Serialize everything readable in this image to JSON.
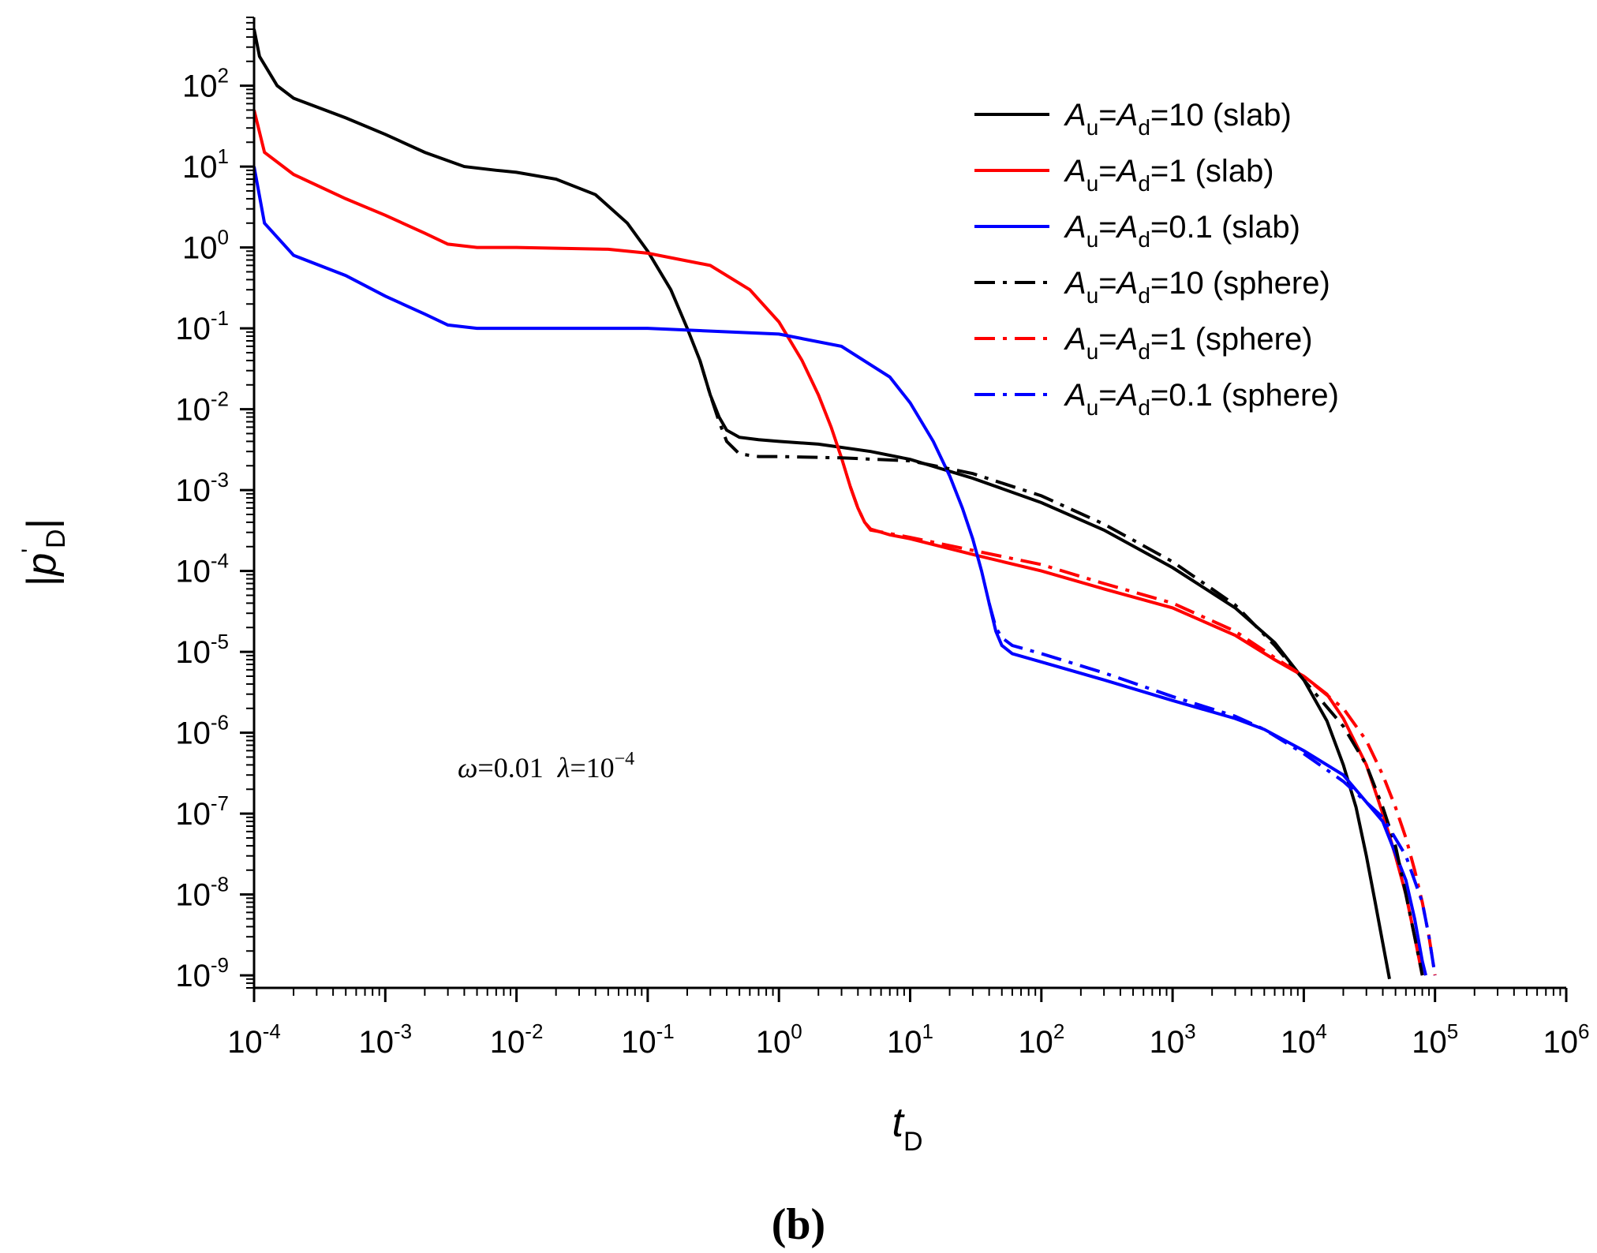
{
  "chart_data": {
    "type": "line",
    "xscale": "log",
    "yscale": "log",
    "xlim": [
      0.0001,
      1000000
    ],
    "ylim": [
      7e-10,
      700
    ],
    "xlabel": {
      "main": "t",
      "sub": "D"
    },
    "ylabel": {
      "open": "|",
      "main": "p",
      "prime": "'",
      "sub": "D",
      "close": "|"
    },
    "x_ticks": [
      {
        "value": 0.0001,
        "base": "10",
        "exp": "-4"
      },
      {
        "value": 0.001,
        "base": "10",
        "exp": "-3"
      },
      {
        "value": 0.01,
        "base": "10",
        "exp": "-2"
      },
      {
        "value": 0.1,
        "base": "10",
        "exp": "-1"
      },
      {
        "value": 1,
        "base": "10",
        "exp": "0"
      },
      {
        "value": 10,
        "base": "10",
        "exp": "1"
      },
      {
        "value": 100,
        "base": "10",
        "exp": "2"
      },
      {
        "value": 1000,
        "base": "10",
        "exp": "3"
      },
      {
        "value": 10000,
        "base": "10",
        "exp": "4"
      },
      {
        "value": 100000,
        "base": "10",
        "exp": "5"
      },
      {
        "value": 1000000,
        "base": "10",
        "exp": "6"
      }
    ],
    "y_ticks": [
      {
        "value": 1e-09,
        "base": "10",
        "exp": "-9"
      },
      {
        "value": 1e-08,
        "base": "10",
        "exp": "-8"
      },
      {
        "value": 1e-07,
        "base": "10",
        "exp": "-7"
      },
      {
        "value": 1e-06,
        "base": "10",
        "exp": "-6"
      },
      {
        "value": 1e-05,
        "base": "10",
        "exp": "-5"
      },
      {
        "value": 0.0001,
        "base": "10",
        "exp": "-4"
      },
      {
        "value": 0.001,
        "base": "10",
        "exp": "-3"
      },
      {
        "value": 0.01,
        "base": "10",
        "exp": "-2"
      },
      {
        "value": 0.1,
        "base": "10",
        "exp": "-1"
      },
      {
        "value": 1,
        "base": "10",
        "exp": "0"
      },
      {
        "value": 10,
        "base": "10",
        "exp": "1"
      },
      {
        "value": 100,
        "base": "10",
        "exp": "2"
      }
    ],
    "annotation": {
      "omega_symbol": "ω",
      "omega_value": "=0.01",
      "lambda_symbol": "λ",
      "lambda_value": "=10",
      "lambda_exp": "−4"
    },
    "caption": "(b)",
    "legend_position": "top-right",
    "series": [
      {
        "name": "Au=Ad=10 (slab)",
        "label": {
          "a1": "A",
          "s1": "u",
          "eq1": "=",
          "a2": "A",
          "s2": "d",
          "rest": "=10 (slab)"
        },
        "color": "#000000",
        "style": "solid",
        "points": [
          [
            0.0001,
            500
          ],
          [
            0.00011,
            230
          ],
          [
            0.00015,
            100
          ],
          [
            0.0002,
            70
          ],
          [
            0.0005,
            40
          ],
          [
            0.001,
            25
          ],
          [
            0.002,
            15
          ],
          [
            0.004,
            10
          ],
          [
            0.007,
            9
          ],
          [
            0.01,
            8.5
          ],
          [
            0.02,
            7
          ],
          [
            0.04,
            4.5
          ],
          [
            0.07,
            2
          ],
          [
            0.1,
            0.9
          ],
          [
            0.15,
            0.3
          ],
          [
            0.2,
            0.1
          ],
          [
            0.25,
            0.04
          ],
          [
            0.3,
            0.015
          ],
          [
            0.35,
            0.008
          ],
          [
            0.4,
            0.0055
          ],
          [
            0.5,
            0.0045
          ],
          [
            0.7,
            0.0042
          ],
          [
            1,
            0.004
          ],
          [
            2,
            0.0037
          ],
          [
            5,
            0.003
          ],
          [
            10,
            0.0024
          ],
          [
            30,
            0.0014
          ],
          [
            100,
            0.0007
          ],
          [
            300,
            0.00032
          ],
          [
            1000,
            0.00011
          ],
          [
            3000,
            3.5e-05
          ],
          [
            6000,
            1.3e-05
          ],
          [
            10000,
            4.5e-06
          ],
          [
            15000,
            1.4e-06
          ],
          [
            20000,
            4e-07
          ],
          [
            25000,
            1.2e-07
          ],
          [
            30000,
            3e-08
          ],
          [
            35000,
            8e-09
          ],
          [
            40000,
            2.5e-09
          ],
          [
            45000,
            9e-10
          ]
        ]
      },
      {
        "name": "Au=Ad=1 (slab)",
        "label": {
          "a1": "A",
          "s1": "u",
          "eq1": "=",
          "a2": "A",
          "s2": "d",
          "rest": "=1 (slab)"
        },
        "color": "#ff0000",
        "style": "solid",
        "points": [
          [
            0.0001,
            50
          ],
          [
            0.00012,
            15
          ],
          [
            0.0002,
            8
          ],
          [
            0.0005,
            4
          ],
          [
            0.001,
            2.5
          ],
          [
            0.002,
            1.5
          ],
          [
            0.003,
            1.1
          ],
          [
            0.005,
            1
          ],
          [
            0.01,
            1
          ],
          [
            0.05,
            0.95
          ],
          [
            0.1,
            0.85
          ],
          [
            0.3,
            0.6
          ],
          [
            0.6,
            0.3
          ],
          [
            1,
            0.12
          ],
          [
            1.5,
            0.04
          ],
          [
            2,
            0.015
          ],
          [
            2.5,
            0.006
          ],
          [
            3,
            0.0025
          ],
          [
            3.5,
            0.0011
          ],
          [
            4,
            0.0006
          ],
          [
            4.5,
            0.0004
          ],
          [
            5,
            0.00033
          ],
          [
            7,
            0.00028
          ],
          [
            10,
            0.00025
          ],
          [
            30,
            0.00016
          ],
          [
            100,
            0.0001
          ],
          [
            300,
            6e-05
          ],
          [
            1000,
            3.5e-05
          ],
          [
            3000,
            1.6e-05
          ],
          [
            6000,
            8e-06
          ],
          [
            10000,
            5e-06
          ],
          [
            15000,
            3e-06
          ],
          [
            20000,
            1.5e-06
          ],
          [
            30000,
            4e-07
          ],
          [
            40000,
            1e-07
          ],
          [
            50000,
            3e-08
          ],
          [
            60000,
            1e-08
          ],
          [
            70000,
            3e-09
          ],
          [
            80000,
            1e-09
          ]
        ]
      },
      {
        "name": "Au=Ad=0.1 (slab)",
        "label": {
          "a1": "A",
          "s1": "u",
          "eq1": "=",
          "a2": "A",
          "s2": "d",
          "rest": "=0.1 (slab)"
        },
        "color": "#0000ff",
        "style": "solid",
        "points": [
          [
            0.0001,
            10
          ],
          [
            0.00012,
            2
          ],
          [
            0.0002,
            0.8
          ],
          [
            0.0005,
            0.45
          ],
          [
            0.001,
            0.25
          ],
          [
            0.002,
            0.15
          ],
          [
            0.003,
            0.11
          ],
          [
            0.005,
            0.1
          ],
          [
            0.1,
            0.1
          ],
          [
            1,
            0.085
          ],
          [
            3,
            0.06
          ],
          [
            7,
            0.025
          ],
          [
            10,
            0.012
          ],
          [
            15,
            0.004
          ],
          [
            20,
            0.0015
          ],
          [
            25,
            0.0006
          ],
          [
            30,
            0.00025
          ],
          [
            35,
            0.0001
          ],
          [
            40,
            4e-05
          ],
          [
            45,
            1.8e-05
          ],
          [
            50,
            1.2e-05
          ],
          [
            60,
            9.5e-06
          ],
          [
            100,
            7.5e-06
          ],
          [
            300,
            4.5e-06
          ],
          [
            1000,
            2.5e-06
          ],
          [
            3000,
            1.5e-06
          ],
          [
            5000,
            1.1e-06
          ],
          [
            10000,
            6e-07
          ],
          [
            20000,
            3e-07
          ],
          [
            40000,
            8e-08
          ],
          [
            60000,
            1.5e-08
          ],
          [
            70000,
            5e-09
          ],
          [
            80000,
            1.5e-09
          ],
          [
            85000,
            1e-09
          ]
        ]
      },
      {
        "name": "Au=Ad=10 (sphere)",
        "label": {
          "a1": "A",
          "s1": "u",
          "eq1": "=",
          "a2": "A",
          "s2": "d",
          "rest": "=10 (sphere)"
        },
        "color": "#000000",
        "style": "dashdot",
        "points": [
          [
            0.25,
            0.04
          ],
          [
            0.3,
            0.015
          ],
          [
            0.35,
            0.007
          ],
          [
            0.4,
            0.004
          ],
          [
            0.5,
            0.0028
          ],
          [
            0.7,
            0.0026
          ],
          [
            1,
            0.0026
          ],
          [
            3,
            0.0025
          ],
          [
            10,
            0.0023
          ],
          [
            30,
            0.0016
          ],
          [
            100,
            0.00085
          ],
          [
            300,
            0.00038
          ],
          [
            1000,
            0.00013
          ],
          [
            3000,
            3.8e-05
          ],
          [
            6000,
            1.2e-05
          ],
          [
            10000,
            4.5e-06
          ],
          [
            20000,
            1.2e-06
          ],
          [
            30000,
            4e-07
          ],
          [
            40000,
            1.2e-07
          ],
          [
            50000,
            4e-08
          ],
          [
            60000,
            1e-08
          ],
          [
            70000,
            3e-09
          ],
          [
            80000,
            1e-09
          ]
        ]
      },
      {
        "name": "Au=Ad=1 (sphere)",
        "label": {
          "a1": "A",
          "s1": "u",
          "eq1": "=",
          "a2": "A",
          "s2": "d",
          "rest": "=1 (sphere)"
        },
        "color": "#ff0000",
        "style": "dashdot",
        "points": [
          [
            3.5,
            0.0011
          ],
          [
            4,
            0.0006
          ],
          [
            4.5,
            0.0004
          ],
          [
            5,
            0.00032
          ],
          [
            7,
            0.00029
          ],
          [
            10,
            0.00026
          ],
          [
            30,
            0.00018
          ],
          [
            100,
            0.00012
          ],
          [
            300,
            7e-05
          ],
          [
            1000,
            4e-05
          ],
          [
            3000,
            1.8e-05
          ],
          [
            6000,
            8.5e-06
          ],
          [
            10000,
            5e-06
          ],
          [
            20000,
            2e-06
          ],
          [
            30000,
            8e-07
          ],
          [
            40000,
            3e-07
          ],
          [
            50000,
            1.2e-07
          ],
          [
            60000,
            5e-08
          ],
          [
            70000,
            2e-08
          ],
          [
            80000,
            8e-09
          ],
          [
            90000,
            3e-09
          ],
          [
            100000,
            1e-09
          ]
        ]
      },
      {
        "name": "Au=Ad=0.1 (sphere)",
        "label": {
          "a1": "A",
          "s1": "u",
          "eq1": "=",
          "a2": "A",
          "s2": "d",
          "rest": "=0.1 (sphere)"
        },
        "color": "#0000ff",
        "style": "dashdot",
        "points": [
          [
            40,
            4e-05
          ],
          [
            45,
            2e-05
          ],
          [
            50,
            1.5e-05
          ],
          [
            60,
            1.2e-05
          ],
          [
            100,
            9.5e-06
          ],
          [
            300,
            5.5e-06
          ],
          [
            1000,
            2.8e-06
          ],
          [
            3000,
            1.6e-06
          ],
          [
            5000,
            1.1e-06
          ],
          [
            10000,
            5.5e-07
          ],
          [
            20000,
            2.5e-07
          ],
          [
            40000,
            9e-08
          ],
          [
            60000,
            3e-08
          ],
          [
            80000,
            8e-09
          ],
          [
            90000,
            3e-09
          ],
          [
            100000,
            1e-09
          ]
        ]
      }
    ]
  }
}
